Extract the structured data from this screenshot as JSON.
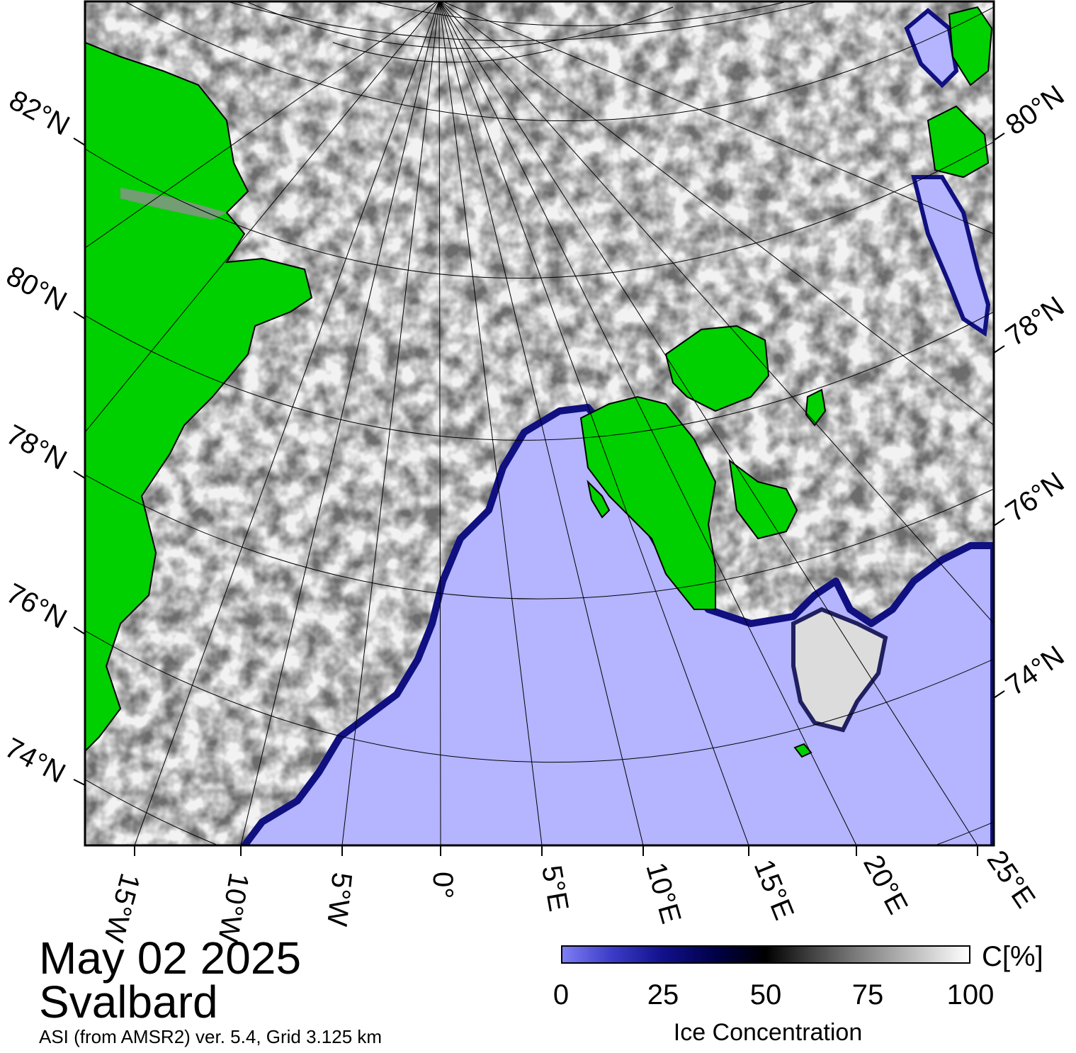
{
  "title": {
    "date": "May 02 2025",
    "region": "Svalbard",
    "subtitle": "ASI (from AMSR2) ver. 5.4,  Grid 3.125 km"
  },
  "colors": {
    "land": "#00d000",
    "open_water": "#b4b4ff",
    "land_ice_shelf": "#909090",
    "frame": "#000000"
  },
  "map": {
    "left_lat_labels": [
      "82°N",
      "80°N",
      "78°N",
      "76°N",
      "74°N"
    ],
    "right_lat_labels": [
      "80°N",
      "78°N",
      "76°N",
      "74°N"
    ],
    "lon_labels": [
      "15°W",
      "10°W",
      "5°W",
      "0°",
      "5°E",
      "10°E",
      "15°E",
      "20°E",
      "25°E"
    ]
  },
  "colorbar": {
    "unit": "C[%]",
    "title": "Ice Concentration",
    "ticks": [
      "0",
      "25",
      "50",
      "75",
      "100"
    ]
  }
}
